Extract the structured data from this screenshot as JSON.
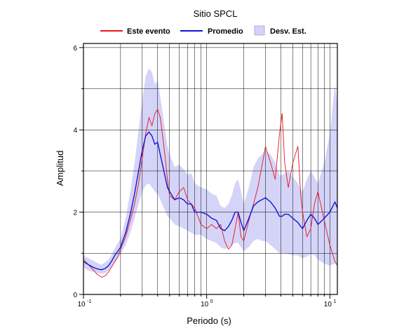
{
  "chart_data": {
    "type": "line",
    "title": "Sitio SPCL",
    "xlabel": "Periodo (s)",
    "ylabel": "Amplitud",
    "xscale": "log",
    "xlim": [
      0.1,
      11.5
    ],
    "ylim": [
      0,
      6.1
    ],
    "grid": true,
    "legend_position": "top",
    "x_ticks": [
      {
        "base": "10",
        "exp": "-1",
        "value": 0.1
      },
      {
        "base": "10",
        "exp": "0",
        "value": 1
      },
      {
        "base": "10",
        "exp": "1",
        "value": 10
      }
    ],
    "y_ticks": [
      {
        "label": "0",
        "value": 0
      },
      {
        "label": "2",
        "value": 2
      },
      {
        "label": "4",
        "value": 4
      },
      {
        "label": "6",
        "value": 6
      }
    ],
    "legend": [
      {
        "name": "Este evento",
        "kind": "line",
        "color": "#e8141c"
      },
      {
        "name": "Promedio",
        "kind": "line",
        "color": "#1414d2"
      },
      {
        "name": "Desv. Est.",
        "kind": "area",
        "color": "#d4d4f8"
      }
    ],
    "series": [
      {
        "name": "Este evento",
        "color": "#e8141c",
        "x": [
          0.1,
          0.11,
          0.12,
          0.13,
          0.14,
          0.15,
          0.16,
          0.17,
          0.18,
          0.19,
          0.2,
          0.22,
          0.24,
          0.26,
          0.28,
          0.3,
          0.32,
          0.34,
          0.36,
          0.38,
          0.4,
          0.42,
          0.45,
          0.48,
          0.5,
          0.55,
          0.6,
          0.65,
          0.7,
          0.75,
          0.8,
          0.9,
          1.0,
          1.1,
          1.2,
          1.3,
          1.4,
          1.5,
          1.6,
          1.7,
          1.8,
          1.9,
          2.0,
          2.2,
          2.4,
          2.6,
          2.8,
          3.0,
          3.3,
          3.6,
          3.9,
          4.1,
          4.3,
          4.6,
          5.0,
          5.5,
          5.8,
          6.0,
          6.5,
          7.0,
          7.5,
          8.0,
          9.0,
          10.0,
          11.0,
          11.5
        ],
        "y": [
          0.85,
          0.72,
          0.6,
          0.48,
          0.42,
          0.45,
          0.55,
          0.68,
          0.8,
          0.92,
          1.1,
          1.4,
          1.8,
          2.2,
          2.7,
          3.3,
          3.9,
          4.3,
          4.1,
          4.4,
          4.5,
          4.3,
          3.6,
          2.8,
          2.4,
          2.3,
          2.5,
          2.6,
          2.3,
          2.2,
          2.1,
          1.7,
          1.6,
          1.7,
          1.6,
          1.7,
          1.3,
          1.1,
          1.2,
          1.6,
          2.0,
          1.4,
          1.3,
          1.8,
          2.2,
          2.6,
          3.1,
          3.6,
          3.2,
          2.8,
          3.9,
          4.4,
          3.2,
          2.6,
          3.2,
          3.6,
          2.4,
          2.0,
          1.4,
          1.6,
          2.2,
          2.5,
          1.8,
          1.2,
          0.8,
          0.7
        ]
      },
      {
        "name": "Promedio",
        "color": "#1414d2",
        "x": [
          0.1,
          0.11,
          0.12,
          0.13,
          0.14,
          0.15,
          0.16,
          0.17,
          0.18,
          0.19,
          0.2,
          0.22,
          0.24,
          0.26,
          0.28,
          0.3,
          0.32,
          0.34,
          0.36,
          0.38,
          0.4,
          0.42,
          0.45,
          0.48,
          0.5,
          0.55,
          0.6,
          0.65,
          0.7,
          0.75,
          0.8,
          0.9,
          1.0,
          1.1,
          1.2,
          1.3,
          1.4,
          1.5,
          1.6,
          1.7,
          1.8,
          1.9,
          2.0,
          2.2,
          2.4,
          2.6,
          2.8,
          3.0,
          3.3,
          3.6,
          3.9,
          4.1,
          4.3,
          4.6,
          5.0,
          5.5,
          5.8,
          6.0,
          6.5,
          7.0,
          7.5,
          8.0,
          9.0,
          10.0,
          11.0,
          11.5
        ],
        "y": [
          0.8,
          0.72,
          0.66,
          0.62,
          0.6,
          0.63,
          0.7,
          0.82,
          0.95,
          1.05,
          1.15,
          1.5,
          1.95,
          2.45,
          3.0,
          3.5,
          3.85,
          3.95,
          3.85,
          3.65,
          3.7,
          3.4,
          3.0,
          2.6,
          2.5,
          2.3,
          2.35,
          2.3,
          2.2,
          2.2,
          2.0,
          2.0,
          1.95,
          1.85,
          1.8,
          1.6,
          1.55,
          1.65,
          1.8,
          2.0,
          2.0,
          1.75,
          1.55,
          1.85,
          2.15,
          2.25,
          2.3,
          2.35,
          2.25,
          2.1,
          1.9,
          1.9,
          1.95,
          1.95,
          1.85,
          1.75,
          1.65,
          1.6,
          1.8,
          1.95,
          1.85,
          1.7,
          1.85,
          2.0,
          2.25,
          2.1
        ]
      },
      {
        "name": "Desv. Est.",
        "kind": "band",
        "color": "#d4d4f8",
        "x": [
          0.1,
          0.11,
          0.12,
          0.13,
          0.14,
          0.15,
          0.16,
          0.17,
          0.18,
          0.19,
          0.2,
          0.22,
          0.24,
          0.26,
          0.28,
          0.3,
          0.32,
          0.34,
          0.36,
          0.38,
          0.4,
          0.42,
          0.45,
          0.48,
          0.5,
          0.55,
          0.6,
          0.65,
          0.7,
          0.75,
          0.8,
          0.9,
          1.0,
          1.1,
          1.2,
          1.3,
          1.4,
          1.5,
          1.6,
          1.7,
          1.8,
          1.9,
          2.0,
          2.2,
          2.4,
          2.6,
          2.8,
          3.0,
          3.3,
          3.6,
          3.9,
          4.1,
          4.3,
          4.6,
          5.0,
          5.5,
          5.8,
          6.0,
          6.5,
          7.0,
          7.5,
          8.0,
          9.0,
          10.0,
          11.0,
          11.5
        ],
        "lower": [
          0.65,
          0.58,
          0.55,
          0.52,
          0.5,
          0.52,
          0.58,
          0.68,
          0.78,
          0.88,
          0.98,
          1.2,
          1.5,
          1.85,
          2.2,
          2.5,
          2.65,
          2.7,
          2.6,
          2.5,
          2.45,
          2.3,
          2.1,
          1.9,
          1.85,
          1.7,
          1.65,
          1.6,
          1.55,
          1.5,
          1.45,
          1.45,
          1.35,
          1.3,
          1.25,
          1.15,
          1.1,
          1.15,
          1.2,
          1.25,
          1.25,
          1.15,
          1.05,
          1.15,
          1.3,
          1.35,
          1.3,
          1.3,
          1.2,
          1.1,
          1.0,
          1.0,
          1.0,
          0.98,
          0.95,
          0.95,
          0.9,
          0.88,
          0.92,
          0.98,
          0.95,
          0.85,
          0.75,
          0.7,
          0.75,
          0.75
        ]
      },
      {
        "name": "Desv. Est. (superior)",
        "kind": "band-upper",
        "x": [
          0.1,
          0.11,
          0.12,
          0.13,
          0.14,
          0.15,
          0.16,
          0.17,
          0.18,
          0.19,
          0.2,
          0.22,
          0.24,
          0.26,
          0.28,
          0.3,
          0.32,
          0.34,
          0.36,
          0.38,
          0.4,
          0.42,
          0.45,
          0.48,
          0.5,
          0.55,
          0.6,
          0.65,
          0.7,
          0.75,
          0.8,
          0.9,
          1.0,
          1.1,
          1.2,
          1.3,
          1.4,
          1.5,
          1.6,
          1.7,
          1.8,
          1.9,
          2.0,
          2.2,
          2.4,
          2.6,
          2.8,
          3.0,
          3.3,
          3.6,
          3.9,
          4.1,
          4.3,
          4.6,
          5.0,
          5.5,
          5.8,
          6.0,
          6.5,
          7.0,
          7.5,
          8.0,
          9.0,
          10.0,
          11.0,
          11.5
        ],
        "upper": [
          0.95,
          0.88,
          0.82,
          0.76,
          0.72,
          0.78,
          0.85,
          0.98,
          1.12,
          1.25,
          1.35,
          1.85,
          2.5,
          3.2,
          4.0,
          4.7,
          5.3,
          5.5,
          5.4,
          5.1,
          5.2,
          4.8,
          4.2,
          3.6,
          3.4,
          3.1,
          3.15,
          3.05,
          2.9,
          2.95,
          2.7,
          2.6,
          2.55,
          2.45,
          2.4,
          2.15,
          2.1,
          2.2,
          2.4,
          2.7,
          2.8,
          2.5,
          2.2,
          2.6,
          3.1,
          3.3,
          3.4,
          3.5,
          3.4,
          3.2,
          2.9,
          2.9,
          2.95,
          3.0,
          2.85,
          2.7,
          2.55,
          2.5,
          2.8,
          3.0,
          2.85,
          2.7,
          3.2,
          3.9,
          5.1,
          4.6
        ]
      }
    ]
  }
}
